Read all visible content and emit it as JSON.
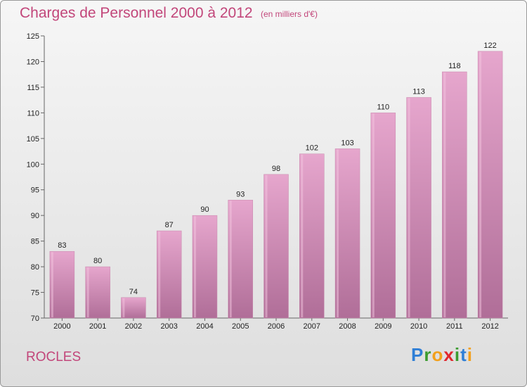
{
  "header": {
    "title": "Charges de Personnel 2000 à 2012",
    "subtitle": "(en milliers d'€)"
  },
  "footer": {
    "place": "ROCLES",
    "brand": "Proxiti",
    "brand_letters": [
      {
        "ch": "P",
        "color": "#2f7fd6"
      },
      {
        "ch": "r",
        "color": "#3b9b2f"
      },
      {
        "ch": "o",
        "color": "#f2a01c"
      },
      {
        "ch": "x",
        "color": "#e0262d"
      },
      {
        "ch": "i",
        "color": "#3b9b2f"
      },
      {
        "ch": "t",
        "color": "#2f7fd6"
      },
      {
        "ch": "i",
        "color": "#f2a01c"
      }
    ]
  },
  "chart_data": {
    "type": "bar",
    "title": "Charges de Personnel 2000 à 2012",
    "subtitle": "(en milliers d'€)",
    "xlabel": "",
    "ylabel": "",
    "categories": [
      "2000",
      "2001",
      "2002",
      "2003",
      "2004",
      "2005",
      "2006",
      "2007",
      "2008",
      "2009",
      "2010",
      "2011",
      "2012"
    ],
    "values": [
      83,
      80,
      74,
      87,
      90,
      93,
      98,
      102,
      103,
      110,
      113,
      118,
      122
    ],
    "data_labels": [
      "83",
      "80",
      "74",
      "87",
      "90",
      "93",
      "98",
      "102",
      "103",
      "110",
      "113",
      "118",
      "122"
    ],
    "ylim": [
      70,
      125
    ],
    "yticks": [
      70,
      75,
      80,
      85,
      90,
      95,
      100,
      105,
      110,
      115,
      120,
      125
    ],
    "grid": false,
    "legend": "none",
    "bar_color": "#d68ab4"
  }
}
